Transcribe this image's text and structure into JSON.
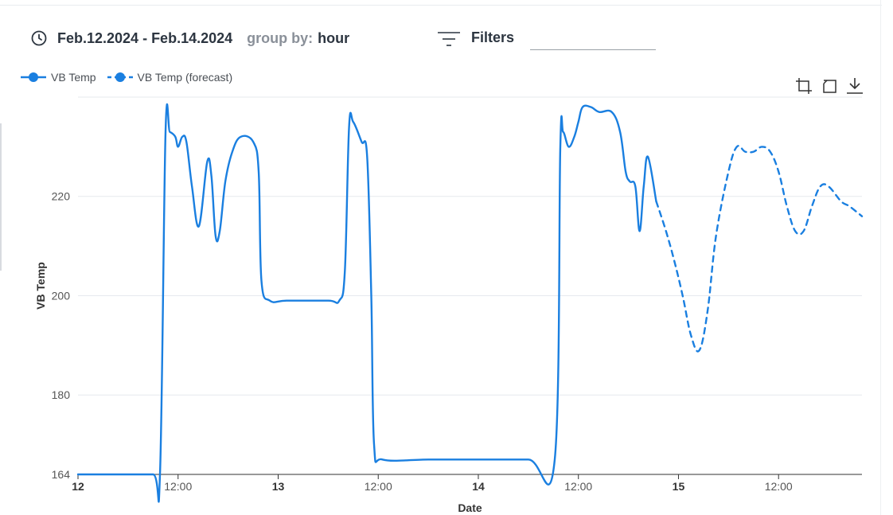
{
  "toolbar": {
    "date_range": "Feb.12.2024 - Feb.14.2024",
    "group_by_label": "group by:",
    "group_by_value": "hour",
    "filters_label": "Filters",
    "filters_value": "",
    "icons": [
      "clock-icon",
      "filter-icon"
    ]
  },
  "chart_tools": [
    "crop-zoom-icon",
    "reset-zoom-icon",
    "download-icon"
  ],
  "colors": {
    "series": "#1a7fe0",
    "grid": "#e6e9ee",
    "axis": "#333333"
  },
  "chart_data": {
    "type": "line",
    "title": "",
    "xlabel": "Date",
    "ylabel": "VB Temp",
    "xlim": [
      "2024-02-12 00:00",
      "2024-02-15 22:00"
    ],
    "ylim": [
      164,
      240
    ],
    "yticks": [
      164,
      180,
      200,
      220
    ],
    "xticks": [
      {
        "label": "12",
        "at": "2024-02-12 00:00",
        "major": true
      },
      {
        "label": "12:00",
        "at": "2024-02-12 12:00",
        "major": false
      },
      {
        "label": "13",
        "at": "2024-02-13 00:00",
        "major": true
      },
      {
        "label": "12:00",
        "at": "2024-02-13 12:00",
        "major": false
      },
      {
        "label": "14",
        "at": "2024-02-14 00:00",
        "major": true
      },
      {
        "label": "12:00",
        "at": "2024-02-14 12:00",
        "major": false
      },
      {
        "label": "15",
        "at": "2024-02-15 00:00",
        "major": true
      },
      {
        "label": "12:00",
        "at": "2024-02-15 12:00",
        "major": false
      }
    ],
    "grid": true,
    "legend_position": "top-left",
    "series": [
      {
        "name": "VB Temp",
        "style": "solid",
        "points": [
          [
            "2024-02-12 00:00",
            164
          ],
          [
            "2024-02-12 05:00",
            164
          ],
          [
            "2024-02-12 09:00",
            164
          ],
          [
            "2024-02-12 09:50",
            164
          ],
          [
            "2024-02-12 10:30",
            233
          ],
          [
            "2024-02-12 11:00",
            233
          ],
          [
            "2024-02-12 11:40",
            232
          ],
          [
            "2024-02-12 12:00",
            230
          ],
          [
            "2024-02-12 12:30",
            232
          ],
          [
            "2024-02-12 13:00",
            231
          ],
          [
            "2024-02-12 13:40",
            222
          ],
          [
            "2024-02-12 14:30",
            214
          ],
          [
            "2024-02-12 15:30",
            227
          ],
          [
            "2024-02-12 16:00",
            224
          ],
          [
            "2024-02-12 16:30",
            212
          ],
          [
            "2024-02-12 17:00",
            213
          ],
          [
            "2024-02-12 17:40",
            223
          ],
          [
            "2024-02-12 18:30",
            229
          ],
          [
            "2024-02-12 19:30",
            232
          ],
          [
            "2024-02-12 21:00",
            231
          ],
          [
            "2024-02-12 21:40",
            225
          ],
          [
            "2024-02-12 22:00",
            203
          ],
          [
            "2024-02-12 23:00",
            199
          ],
          [
            "2024-02-13 01:00",
            199
          ],
          [
            "2024-02-13 06:00",
            199
          ],
          [
            "2024-02-13 07:20",
            199
          ],
          [
            "2024-02-13 08:00",
            205
          ],
          [
            "2024-02-13 08:30",
            234
          ],
          [
            "2024-02-13 09:00",
            235
          ],
          [
            "2024-02-13 10:00",
            231
          ],
          [
            "2024-02-13 10:40",
            228
          ],
          [
            "2024-02-13 11:10",
            200
          ],
          [
            "2024-02-13 11:30",
            170
          ],
          [
            "2024-02-13 12:30",
            167
          ],
          [
            "2024-02-13 18:00",
            167
          ],
          [
            "2024-02-14 00:00",
            167
          ],
          [
            "2024-02-14 06:00",
            167
          ],
          [
            "2024-02-14 09:10",
            167
          ],
          [
            "2024-02-14 09:50",
            230
          ],
          [
            "2024-02-14 10:10",
            233
          ],
          [
            "2024-02-14 10:50",
            230
          ],
          [
            "2024-02-14 11:30",
            232
          ],
          [
            "2024-02-14 12:00",
            235
          ],
          [
            "2024-02-14 12:30",
            238
          ],
          [
            "2024-02-14 13:30",
            238
          ],
          [
            "2024-02-14 14:30",
            237
          ],
          [
            "2024-02-14 16:00",
            237
          ],
          [
            "2024-02-14 17:00",
            233
          ],
          [
            "2024-02-14 17:40",
            225
          ],
          [
            "2024-02-14 18:10",
            223
          ],
          [
            "2024-02-14 18:50",
            222
          ],
          [
            "2024-02-14 19:20",
            213
          ],
          [
            "2024-02-14 19:50",
            222
          ],
          [
            "2024-02-14 20:20",
            228
          ],
          [
            "2024-02-14 21:20",
            219
          ]
        ]
      },
      {
        "name": "VB Temp (forecast)",
        "style": "dashed",
        "points": [
          [
            "2024-02-14 21:20",
            219
          ],
          [
            "2024-02-14 22:30",
            213
          ],
          [
            "2024-02-14 23:30",
            207
          ],
          [
            "2024-02-15 00:30",
            200
          ],
          [
            "2024-02-15 01:30",
            192
          ],
          [
            "2024-02-15 02:30",
            189
          ],
          [
            "2024-02-15 03:30",
            197
          ],
          [
            "2024-02-15 04:30",
            212
          ],
          [
            "2024-02-15 06:00",
            225
          ],
          [
            "2024-02-15 07:00",
            230
          ],
          [
            "2024-02-15 08:00",
            229
          ],
          [
            "2024-02-15 09:00",
            229
          ],
          [
            "2024-02-15 10:00",
            230
          ],
          [
            "2024-02-15 11:00",
            229
          ],
          [
            "2024-02-15 12:00",
            225
          ],
          [
            "2024-02-15 13:00",
            218
          ],
          [
            "2024-02-15 14:00",
            213
          ],
          [
            "2024-02-15 15:00",
            213
          ],
          [
            "2024-02-15 16:00",
            218
          ],
          [
            "2024-02-15 17:00",
            222
          ],
          [
            "2024-02-15 18:00",
            222
          ],
          [
            "2024-02-15 19:30",
            219
          ],
          [
            "2024-02-15 20:30",
            218
          ],
          [
            "2024-02-15 22:00",
            216
          ]
        ]
      }
    ]
  }
}
